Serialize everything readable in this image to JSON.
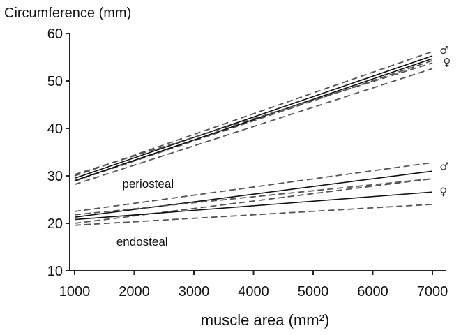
{
  "chart_data": {
    "type": "line",
    "title": "Circumference (mm)",
    "xlabel": "muscle area (mm²)",
    "ylabel": "Circumference (mm)",
    "xlim": [
      1000,
      7200
    ],
    "ylim": [
      10,
      60
    ],
    "xticks": [
      1000,
      2000,
      3000,
      4000,
      5000,
      6000,
      7000
    ],
    "yticks": [
      10,
      20,
      30,
      40,
      50,
      60
    ],
    "grid": false,
    "annotations": [
      {
        "text": "periosteal",
        "x": 1800,
        "y": 27.5
      },
      {
        "text": "endosteal",
        "x": 1700,
        "y": 15.3
      }
    ],
    "series": [
      {
        "name": "♂",
        "group": "periosteal",
        "style": "solid",
        "x": [
          1000,
          7000
        ],
        "y": [
          29.5,
          55.3
        ]
      },
      {
        "name": "♂",
        "group": "periosteal",
        "style": "dashed",
        "x": [
          1000,
          7000
        ],
        "y": [
          30.0,
          56.2
        ]
      },
      {
        "name": "♂",
        "group": "periosteal",
        "style": "dashed",
        "x": [
          1000,
          7000
        ],
        "y": [
          28.9,
          54.3
        ]
      },
      {
        "name": "♀",
        "group": "periosteal",
        "style": "solid",
        "x": [
          1000,
          7000
        ],
        "y": [
          29.0,
          54.7
        ]
      },
      {
        "name": "♀",
        "group": "periosteal",
        "style": "dashed",
        "x": [
          1000,
          7000
        ],
        "y": [
          30.3,
          53.8
        ]
      },
      {
        "name": "♀",
        "group": "periosteal",
        "style": "dashed",
        "x": [
          1000,
          7000
        ],
        "y": [
          28.2,
          52.6
        ]
      },
      {
        "name": "♂",
        "group": "endosteal",
        "style": "solid",
        "x": [
          1000,
          7000
        ],
        "y": [
          21.3,
          31.0
        ]
      },
      {
        "name": "♂",
        "group": "endosteal",
        "style": "dashed",
        "x": [
          1000,
          7000
        ],
        "y": [
          22.5,
          32.8
        ]
      },
      {
        "name": "♂",
        "group": "endosteal",
        "style": "dashed",
        "x": [
          1000,
          7000
        ],
        "y": [
          20.0,
          29.4
        ]
      },
      {
        "name": "♀",
        "group": "endosteal",
        "style": "solid",
        "x": [
          1000,
          7000
        ],
        "y": [
          20.8,
          26.6
        ]
      },
      {
        "name": "♀",
        "group": "endosteal",
        "style": "dashed",
        "x": [
          1000,
          7000
        ],
        "y": [
          21.8,
          29.4
        ]
      },
      {
        "name": "♀",
        "group": "endosteal",
        "style": "dashed",
        "x": [
          1000,
          7000
        ],
        "y": [
          19.6,
          24.0
        ]
      }
    ],
    "line_labels": [
      {
        "text": "♂",
        "x": 7120,
        "y": 56.5
      },
      {
        "text": "♀",
        "x": 7180,
        "y": 54.0
      },
      {
        "text": "♂",
        "x": 7120,
        "y": 32.0
      },
      {
        "text": "♀",
        "x": 7120,
        "y": 26.7
      }
    ],
    "colors": {
      "solid": "#111111",
      "dashed": "#555555",
      "axis": "#222222"
    }
  }
}
